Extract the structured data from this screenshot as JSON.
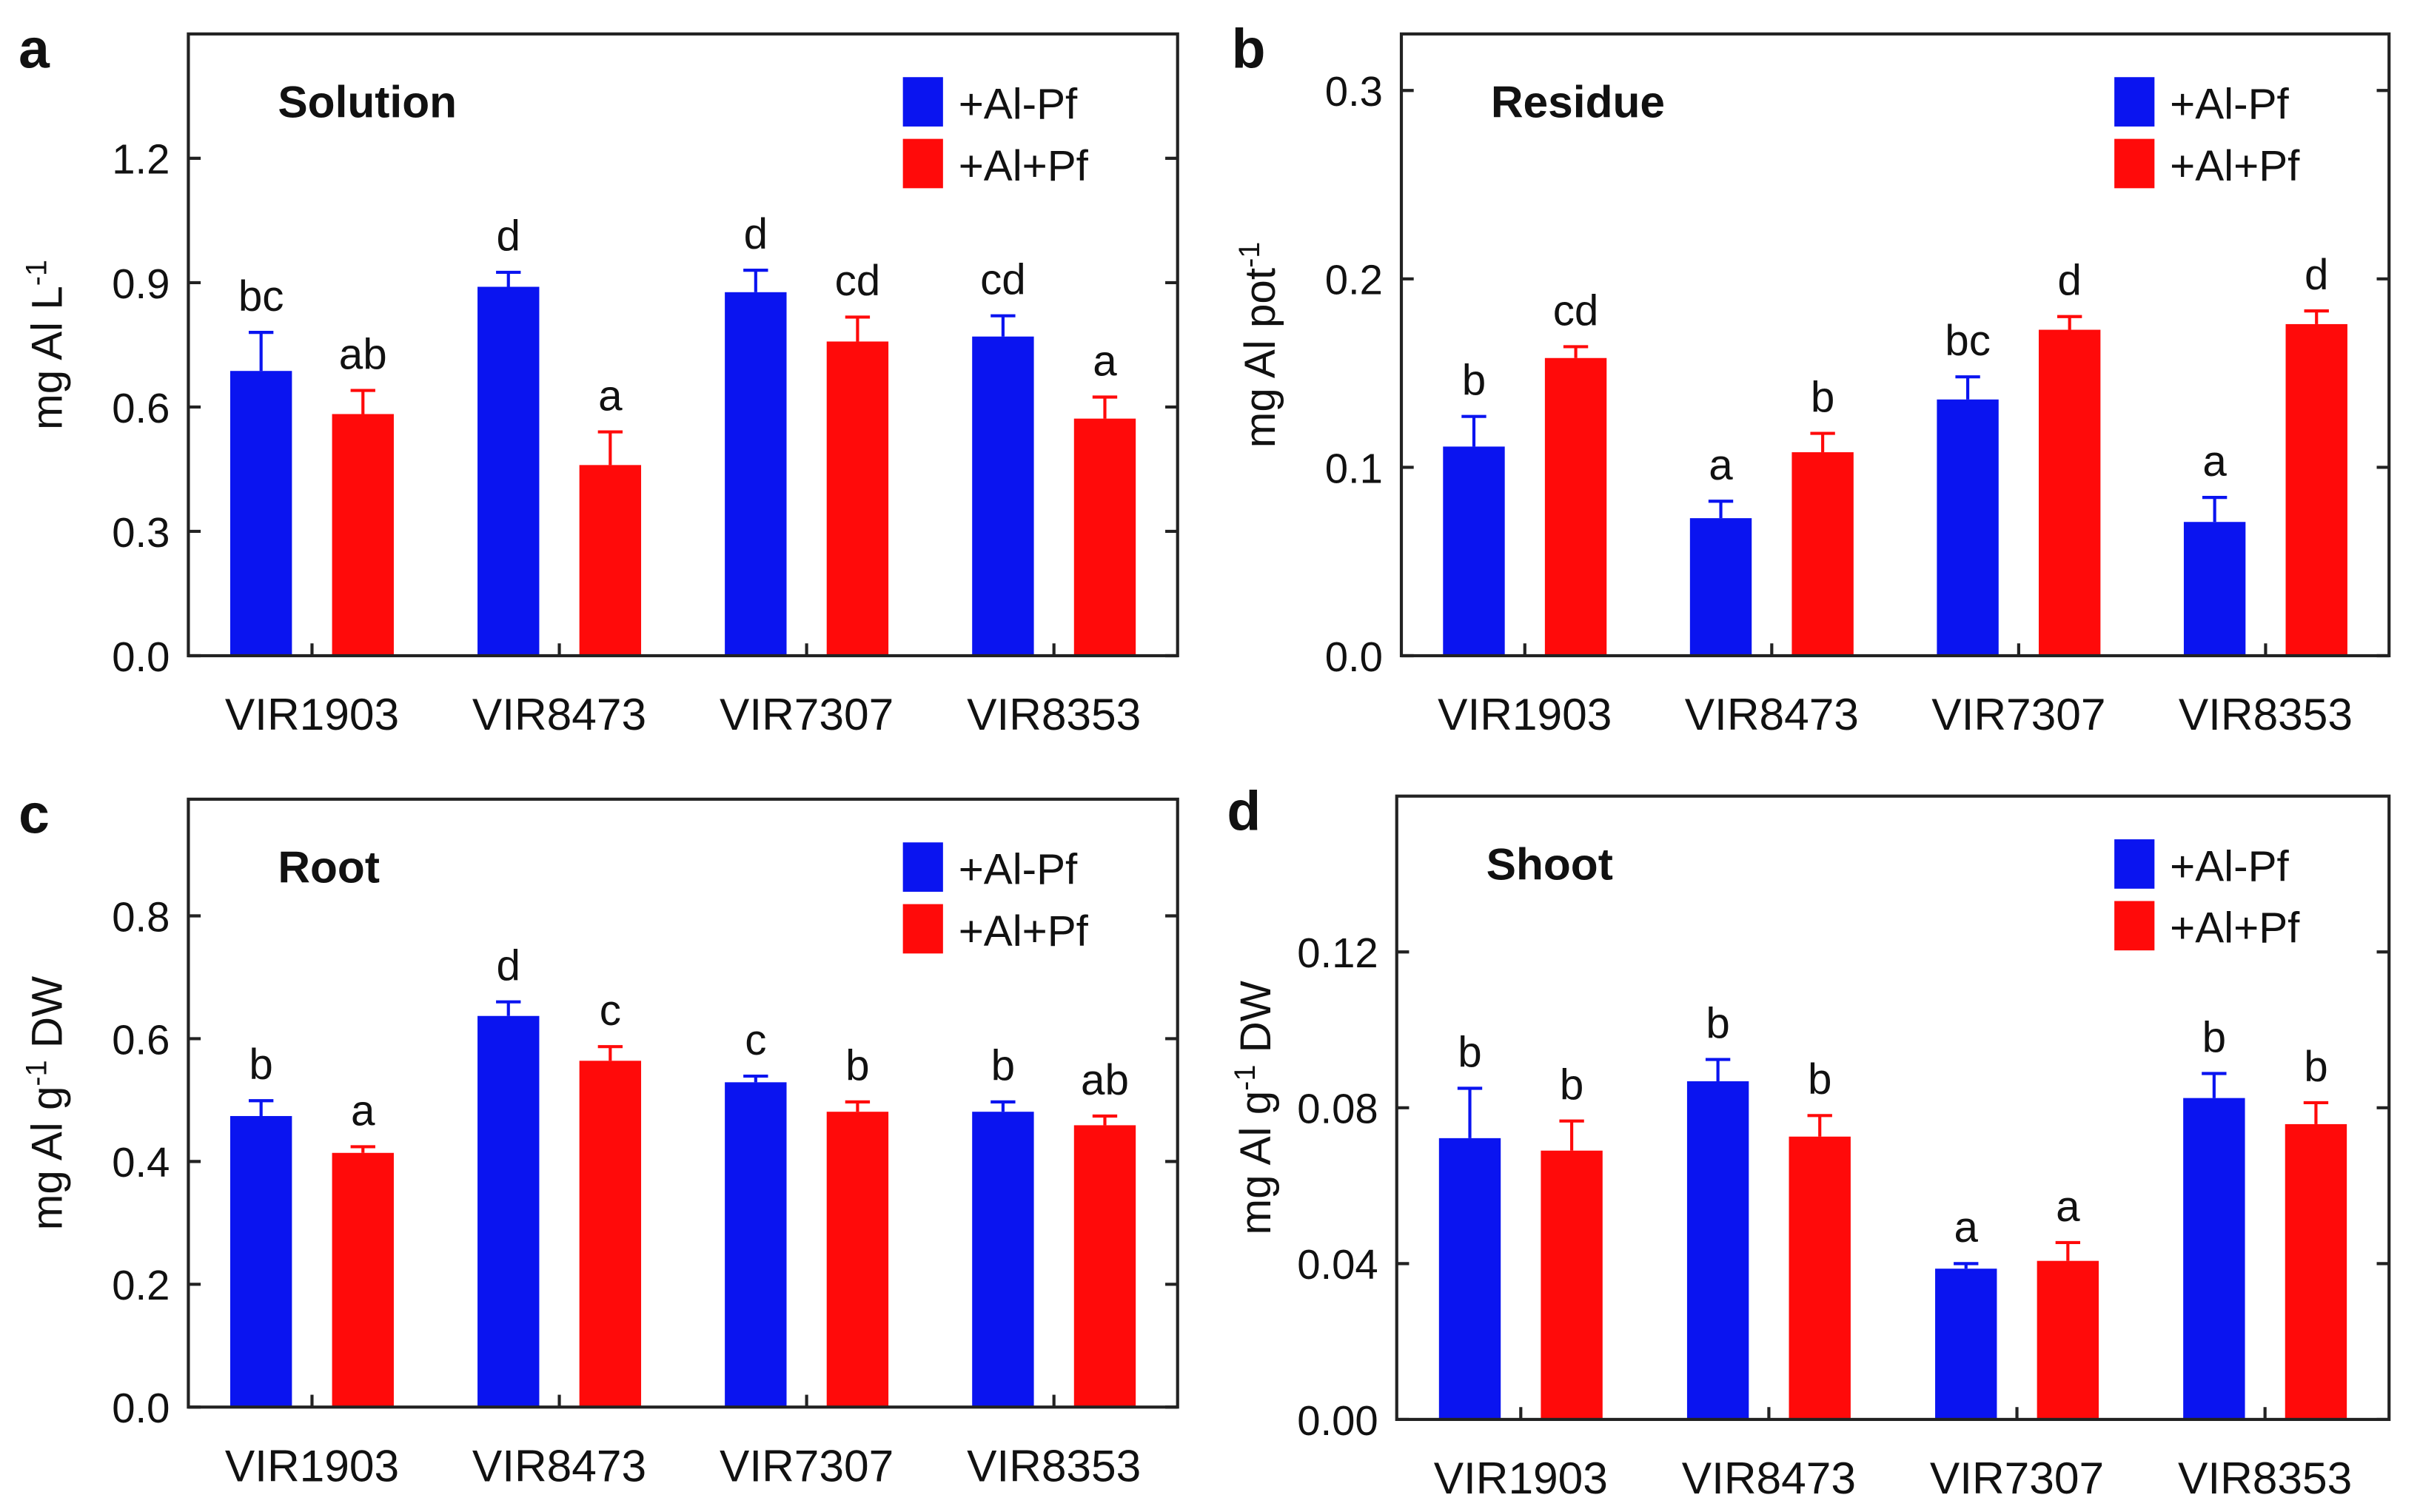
{
  "colors": {
    "minus_pf": "#0a14f0",
    "plus_pf": "#ff0a0a",
    "axis": "#222222"
  },
  "legend": [
    "+Al-Pf",
    "+Al+Pf"
  ],
  "chart_data": [
    {
      "type": "bar",
      "panel": "a",
      "title": "Solution",
      "ylabel": "mg Al L",
      "ylabel_sup": "-1",
      "categories": [
        "VIR1903",
        "VIR8473",
        "VIR7307",
        "VIR8353"
      ],
      "ylim": [
        0,
        1.5
      ],
      "yticks": [
        "0.0",
        "0.3",
        "0.6",
        "0.9",
        "1.2"
      ],
      "ytick_values": [
        0,
        0.3,
        0.6,
        0.9,
        1.2
      ],
      "series": [
        {
          "name": "+Al-Pf",
          "values": [
            0.687,
            0.89,
            0.877,
            0.77
          ],
          "error_upper": [
            0.78,
            0.925,
            0.93,
            0.82
          ],
          "letters": [
            "bc",
            "d",
            "d",
            "cd"
          ]
        },
        {
          "name": "+Al+Pf",
          "values": [
            0.583,
            0.46,
            0.758,
            0.572
          ],
          "error_upper": [
            0.64,
            0.54,
            0.817,
            0.624
          ],
          "letters": [
            "ab",
            "a",
            "cd",
            "a"
          ]
        }
      ]
    },
    {
      "type": "bar",
      "panel": "b",
      "title": "Residue",
      "ylabel": "mg Al pot",
      "ylabel_sup": "-1",
      "categories": [
        "VIR1903",
        "VIR8473",
        "VIR7307",
        "VIR8353"
      ],
      "ylim": [
        0,
        0.33
      ],
      "yticks": [
        "0.0",
        "0.1",
        "0.2",
        "0.3"
      ],
      "ytick_values": [
        0,
        0.1,
        0.2,
        0.3
      ],
      "series": [
        {
          "name": "+Al-Pf",
          "values": [
            0.111,
            0.073,
            0.136,
            0.071
          ],
          "error_upper": [
            0.127,
            0.082,
            0.148,
            0.084
          ],
          "letters": [
            "b",
            "a",
            "bc",
            "a"
          ]
        },
        {
          "name": "+Al+Pf",
          "values": [
            0.158,
            0.108,
            0.173,
            0.176
          ],
          "error_upper": [
            0.164,
            0.118,
            0.18,
            0.183
          ],
          "letters": [
            "cd",
            "b",
            "d",
            "d"
          ]
        }
      ]
    },
    {
      "type": "bar",
      "panel": "c",
      "title": "Root",
      "ylabel": "mg Al g",
      "ylabel_sup": "-1",
      "ylabel_suffix": " DW",
      "categories": [
        "VIR1903",
        "VIR8473",
        "VIR7307",
        "VIR8353"
      ],
      "ylim": [
        0,
        0.99
      ],
      "yticks": [
        "0.0",
        "0.2",
        "0.4",
        "0.6",
        "0.8"
      ],
      "ytick_values": [
        0,
        0.2,
        0.4,
        0.6,
        0.8
      ],
      "series": [
        {
          "name": "+Al-Pf",
          "values": [
            0.474,
            0.637,
            0.529,
            0.481
          ],
          "error_upper": [
            0.499,
            0.66,
            0.539,
            0.497
          ],
          "letters": [
            "b",
            "d",
            "c",
            "b"
          ]
        },
        {
          "name": "+Al+Pf",
          "values": [
            0.414,
            0.564,
            0.481,
            0.459
          ],
          "error_upper": [
            0.424,
            0.587,
            0.497,
            0.474
          ],
          "letters": [
            "a",
            "c",
            "b",
            "ab"
          ]
        }
      ]
    },
    {
      "type": "bar",
      "panel": "d",
      "title": "Shoot",
      "ylabel": "mg Al g",
      "ylabel_sup": "-1",
      "ylabel_suffix": " DW",
      "categories": [
        "VIR1903",
        "VIR8473",
        "VIR7307",
        "VIR8353"
      ],
      "ylim": [
        0,
        0.16
      ],
      "yticks": [
        "0.00",
        "0.04",
        "0.08",
        "0.12"
      ],
      "ytick_values": [
        0,
        0.04,
        0.08,
        0.12
      ],
      "series": [
        {
          "name": "+Al-Pf",
          "values": [
            0.0722,
            0.0868,
            0.0387,
            0.0825
          ],
          "error_upper": [
            0.085,
            0.0924,
            0.04,
            0.0888
          ],
          "letters": [
            "b",
            "b",
            "a",
            "b"
          ]
        },
        {
          "name": "+Al+Pf",
          "values": [
            0.069,
            0.0726,
            0.0407,
            0.0758
          ],
          "error_upper": [
            0.0766,
            0.078,
            0.0454,
            0.0813
          ],
          "letters": [
            "b",
            "b",
            "a",
            "b"
          ]
        }
      ]
    }
  ]
}
